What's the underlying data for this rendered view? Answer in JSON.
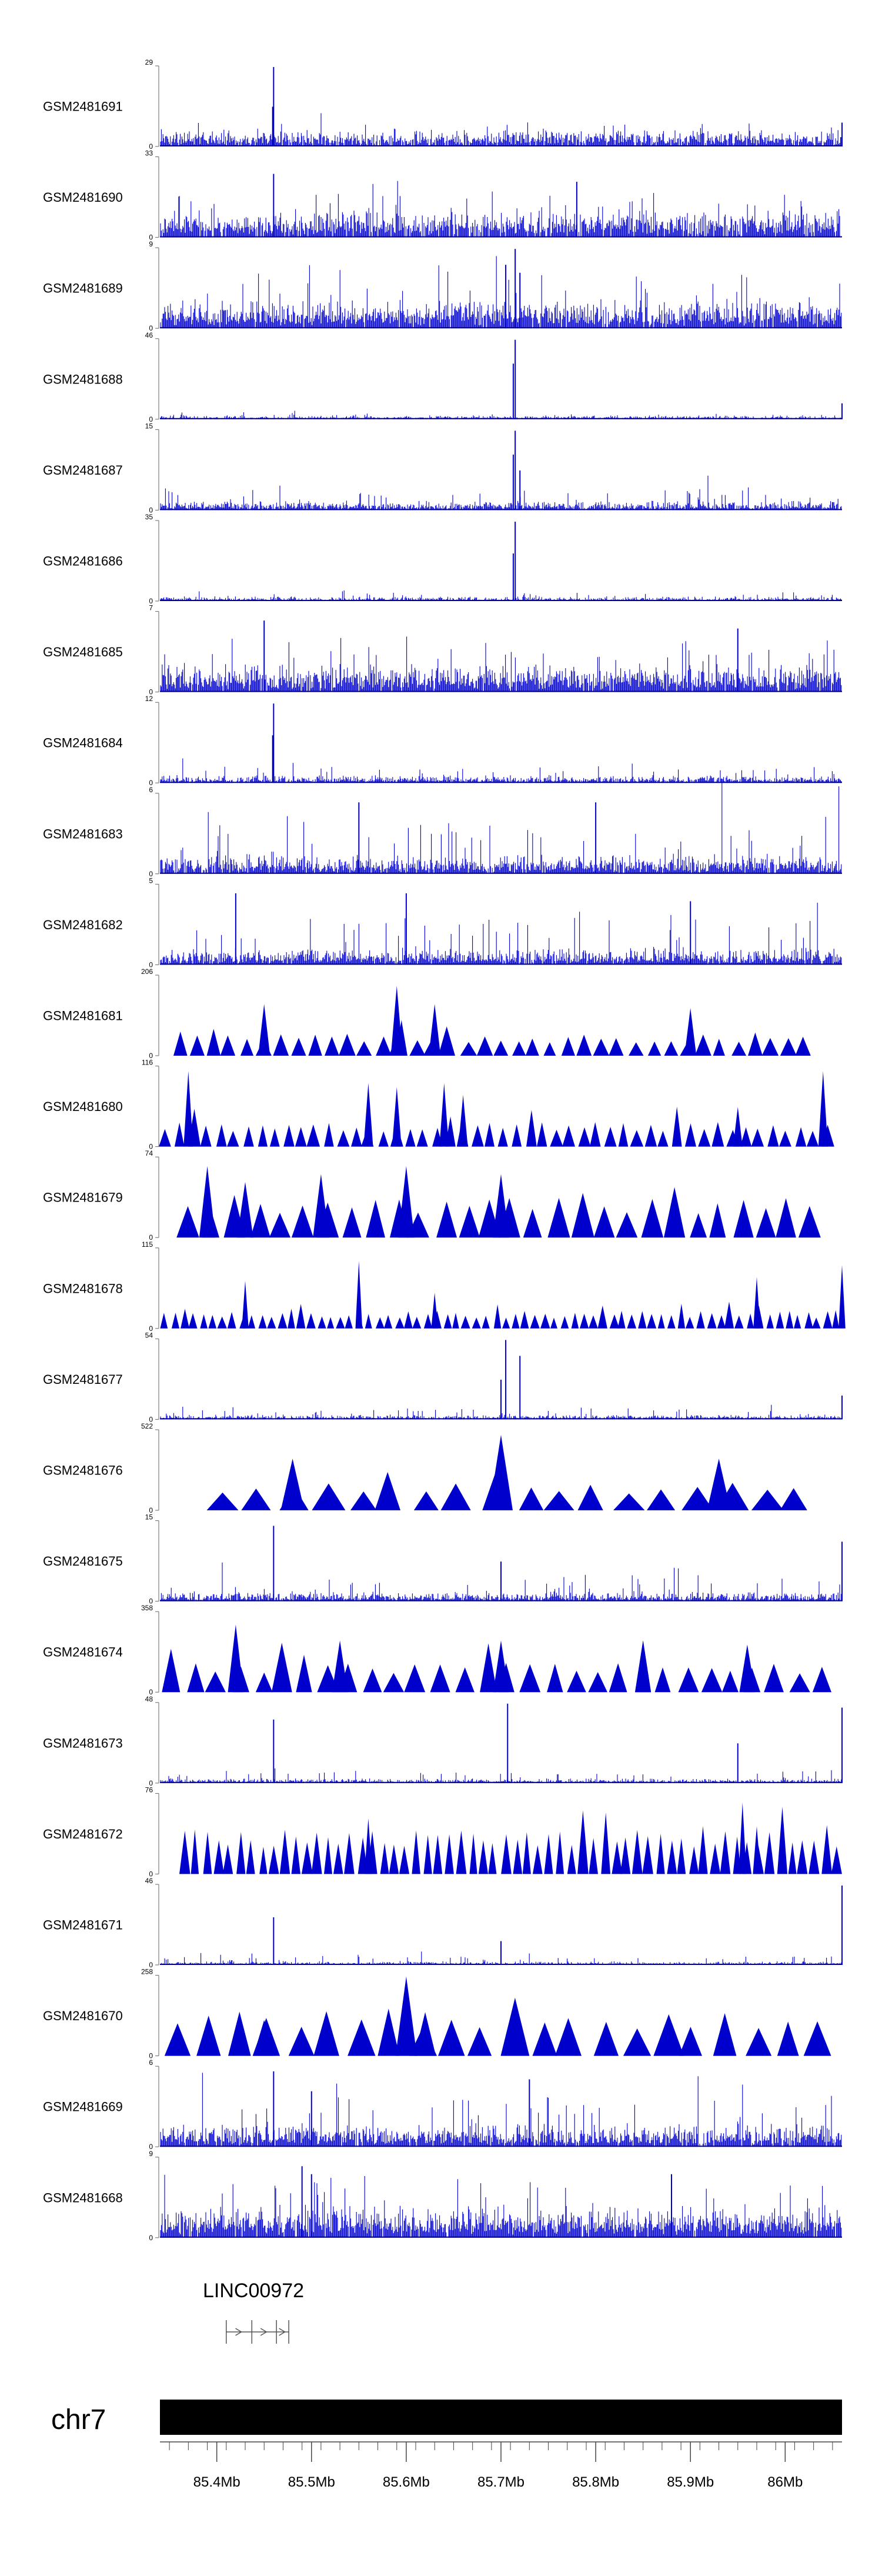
{
  "chart_data": {
    "type": "genome-browser-tracks",
    "chromosome": "chr7",
    "x_range_mb": [
      85.34,
      86.06
    ],
    "x_ticks_mb": [
      85.4,
      85.5,
      85.6,
      85.7,
      85.8,
      85.9,
      86.0
    ],
    "x_tick_labels": [
      "85.4Mb",
      "85.5Mb",
      "85.6Mb",
      "85.7Mb",
      "85.8Mb",
      "85.9Mb",
      "86Mb"
    ],
    "gene": {
      "name": "LINC00972",
      "start_mb": 85.41,
      "end_mb": 85.476,
      "exons_mb": [
        85.41,
        85.437,
        85.463,
        85.476
      ]
    },
    "tracks": [
      {
        "name": "GSM2481691",
        "ymax": 29,
        "ymin": 0,
        "style": "dense",
        "density": 0.9,
        "base": 0.18,
        "noise": 0.15,
        "peaks": [
          [
            85.46,
            1.0
          ],
          [
            85.459,
            0.5
          ],
          [
            86.06,
            0.3
          ]
        ]
      },
      {
        "name": "GSM2481690",
        "ymax": 33,
        "ymin": 0,
        "style": "dense",
        "density": 0.9,
        "base": 0.3,
        "noise": 0.35,
        "peaks": [
          [
            85.46,
            0.8
          ],
          [
            85.78,
            0.7
          ]
        ]
      },
      {
        "name": "GSM2481689",
        "ymax": 9,
        "ymin": 0,
        "style": "dense",
        "density": 0.95,
        "base": 0.3,
        "noise": 0.45,
        "peaks": [
          [
            85.715,
            1.0
          ],
          [
            85.705,
            0.8
          ],
          [
            85.72,
            0.7
          ]
        ]
      },
      {
        "name": "GSM2481688",
        "ymax": 46,
        "ymin": 0,
        "style": "dense",
        "density": 0.85,
        "base": 0.04,
        "noise": 0.05,
        "peaks": [
          [
            85.715,
            1.0
          ],
          [
            85.713,
            0.7
          ],
          [
            86.06,
            0.2
          ]
        ]
      },
      {
        "name": "GSM2481687",
        "ymax": 15,
        "ymin": 0,
        "style": "dense",
        "density": 0.9,
        "base": 0.1,
        "noise": 0.2,
        "peaks": [
          [
            85.715,
            1.0
          ],
          [
            85.713,
            0.7
          ],
          [
            85.72,
            0.5
          ]
        ]
      },
      {
        "name": "GSM2481686",
        "ymax": 35,
        "ymin": 0,
        "style": "dense",
        "density": 0.85,
        "base": 0.05,
        "noise": 0.07,
        "peaks": [
          [
            85.715,
            1.0
          ],
          [
            85.713,
            0.6
          ]
        ]
      },
      {
        "name": "GSM2481685",
        "ymax": 7,
        "ymin": 0,
        "style": "dense",
        "density": 0.95,
        "base": 0.3,
        "noise": 0.45,
        "peaks": [
          [
            85.45,
            0.9
          ],
          [
            85.95,
            0.8
          ]
        ]
      },
      {
        "name": "GSM2481684",
        "ymax": 12,
        "ymin": 0,
        "style": "dense",
        "density": 0.9,
        "base": 0.08,
        "noise": 0.15,
        "peaks": [
          [
            85.46,
            1.0
          ],
          [
            85.459,
            0.6
          ]
        ]
      },
      {
        "name": "GSM2481683",
        "ymax": 6,
        "ymin": 0,
        "style": "dense",
        "density": 0.95,
        "base": 0.2,
        "noise": 0.5,
        "peaks": [
          [
            85.55,
            0.9
          ],
          [
            85.8,
            0.9
          ]
        ]
      },
      {
        "name": "GSM2481682",
        "ymax": 5,
        "ymin": 0,
        "style": "dense",
        "density": 0.95,
        "base": 0.18,
        "noise": 0.5,
        "peaks": [
          [
            85.42,
            0.9
          ],
          [
            85.6,
            0.9
          ],
          [
            85.9,
            0.8
          ]
        ]
      },
      {
        "name": "GSM2481681",
        "ymax": 206,
        "ymin": 0,
        "style": "triangle",
        "start": 85.35,
        "end": 86.03,
        "count": 38,
        "base": 0.22,
        "noise": 0.22,
        "peaks": [
          [
            85.45,
            0.65
          ],
          [
            85.59,
            0.88
          ],
          [
            85.595,
            0.45
          ],
          [
            85.63,
            0.65
          ],
          [
            85.9,
            0.6
          ]
        ]
      },
      {
        "name": "GSM2481680",
        "ymax": 116,
        "ymin": 0,
        "style": "triangle",
        "start": 85.34,
        "end": 86.05,
        "count": 50,
        "base": 0.25,
        "noise": 0.3,
        "peaks": [
          [
            85.37,
            0.95
          ],
          [
            85.56,
            0.8
          ],
          [
            85.59,
            0.75
          ],
          [
            85.64,
            0.8
          ],
          [
            85.66,
            0.65
          ],
          [
            85.95,
            0.5
          ],
          [
            86.04,
            0.95
          ]
        ]
      },
      {
        "name": "GSM2481679",
        "ymax": 74,
        "ymin": 0,
        "style": "triangle",
        "start": 85.36,
        "end": 86.04,
        "count": 28,
        "base": 0.4,
        "noise": 0.25,
        "peaks": [
          [
            85.39,
            0.9
          ],
          [
            85.43,
            0.7
          ],
          [
            85.51,
            0.8
          ],
          [
            85.6,
            0.9
          ],
          [
            85.7,
            0.8
          ]
        ]
      },
      {
        "name": "GSM2481678",
        "ymax": 115,
        "ymin": 0,
        "style": "triangle",
        "start": 85.34,
        "end": 86.06,
        "count": 70,
        "base": 0.18,
        "noise": 0.2,
        "peaks": [
          [
            85.43,
            0.6
          ],
          [
            85.55,
            0.85
          ],
          [
            85.63,
            0.45
          ],
          [
            85.97,
            0.65
          ],
          [
            86.06,
            0.8
          ]
        ]
      },
      {
        "name": "GSM2481677",
        "ymax": 54,
        "ymin": 0,
        "style": "dense",
        "density": 0.85,
        "base": 0.05,
        "noise": 0.12,
        "peaks": [
          [
            85.705,
            1.0
          ],
          [
            85.72,
            0.8
          ],
          [
            85.7,
            0.5
          ],
          [
            86.06,
            0.3
          ]
        ]
      },
      {
        "name": "GSM2481676",
        "ymax": 522,
        "ymin": 0,
        "style": "triangle",
        "start": 85.39,
        "end": 86.03,
        "count": 18,
        "base": 0.28,
        "noise": 0.25,
        "peaks": [
          [
            85.48,
            0.65
          ],
          [
            85.7,
            0.95
          ],
          [
            85.93,
            0.65
          ]
        ]
      },
      {
        "name": "GSM2481675",
        "ymax": 15,
        "ymin": 0,
        "style": "dense",
        "density": 0.9,
        "base": 0.1,
        "noise": 0.25,
        "peaks": [
          [
            85.46,
            0.95
          ],
          [
            86.06,
            0.75
          ],
          [
            85.7,
            0.5
          ]
        ]
      },
      {
        "name": "GSM2481674",
        "ymax": 358,
        "ymin": 0,
        "style": "triangle",
        "start": 85.34,
        "end": 86.05,
        "count": 30,
        "base": 0.3,
        "noise": 0.3,
        "peaks": [
          [
            85.42,
            0.85
          ],
          [
            85.53,
            0.65
          ],
          [
            85.7,
            0.65
          ],
          [
            85.85,
            0.65
          ],
          [
            85.96,
            0.6
          ]
        ]
      },
      {
        "name": "GSM2481673",
        "ymax": 48,
        "ymin": 0,
        "style": "dense",
        "density": 0.85,
        "base": 0.05,
        "noise": 0.12,
        "peaks": [
          [
            85.46,
            0.8
          ],
          [
            85.707,
            1.0
          ],
          [
            85.95,
            0.5
          ],
          [
            86.06,
            0.95
          ]
        ]
      },
      {
        "name": "GSM2481672",
        "ymax": 76,
        "ymin": 0,
        "style": "triangle",
        "start": 85.36,
        "end": 86.06,
        "count": 60,
        "base": 0.45,
        "noise": 0.35,
        "peaks": [
          [
            85.56,
            0.7
          ],
          [
            85.955,
            0.9
          ],
          [
            85.97,
            0.6
          ]
        ]
      },
      {
        "name": "GSM2481671",
        "ymax": 46,
        "ymin": 0,
        "style": "dense",
        "density": 0.85,
        "base": 0.04,
        "noise": 0.1,
        "peaks": [
          [
            85.46,
            0.6
          ],
          [
            86.06,
            1.0
          ],
          [
            85.7,
            0.3
          ]
        ]
      },
      {
        "name": "GSM2481670",
        "ymax": 258,
        "ymin": 0,
        "style": "triangle",
        "start": 85.34,
        "end": 86.05,
        "count": 22,
        "base": 0.45,
        "noise": 0.2,
        "peaks": [
          [
            85.6,
            1.0
          ],
          [
            85.62,
            0.55
          ],
          [
            85.45,
            0.45
          ]
        ]
      },
      {
        "name": "GSM2481669",
        "ymax": 6,
        "ymin": 0,
        "style": "dense",
        "density": 0.95,
        "base": 0.25,
        "noise": 0.5,
        "peaks": [
          [
            85.46,
            0.95
          ],
          [
            85.73,
            0.85
          ],
          [
            85.5,
            0.7
          ]
        ]
      },
      {
        "name": "GSM2481668",
        "ymax": 9,
        "ymin": 0,
        "style": "dense",
        "density": 0.95,
        "base": 0.35,
        "noise": 0.45,
        "peaks": [
          [
            85.49,
            0.9
          ],
          [
            85.5,
            0.8
          ],
          [
            85.88,
            0.8
          ]
        ]
      }
    ]
  }
}
